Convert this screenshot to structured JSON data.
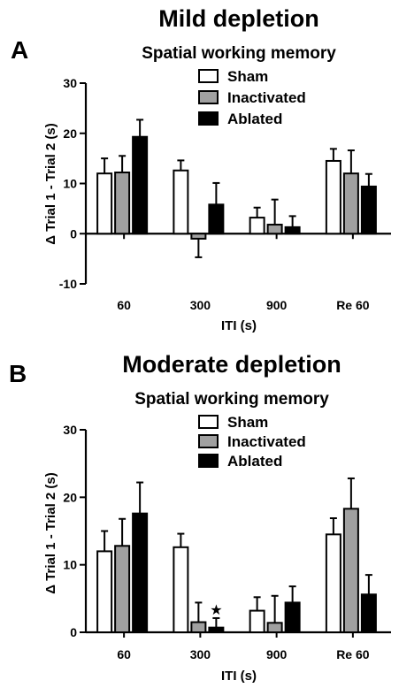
{
  "panels": [
    {
      "letter": "A",
      "heading": "Mild depletion",
      "chart_data": {
        "type": "bar",
        "title": "Spatial working memory",
        "xlabel": "ITI (s)",
        "ylabel": "Δ Trial 1 - Trial 2 (s)",
        "ylim": [
          -10,
          30
        ],
        "yticks": [
          -10,
          0,
          10,
          20,
          30
        ],
        "categories": [
          "60",
          "300",
          "900",
          "Re 60"
        ],
        "legend_position": "top-right",
        "series": [
          {
            "name": "Sham",
            "color": "#ffffff",
            "values": [
              12,
              12.6,
              3.2,
              14.5
            ],
            "errors": [
              3,
              2,
              2,
              2.4
            ]
          },
          {
            "name": "Inactivated",
            "color": "#a0a0a0",
            "values": [
              12.2,
              -1,
              1.8,
              12
            ],
            "errors": [
              3.3,
              3.7,
              5,
              4.6
            ]
          },
          {
            "name": "Ablated",
            "color": "#000000",
            "values": [
              19.3,
              5.8,
              1.3,
              9.4
            ],
            "errors": [
              3.4,
              4.3,
              2.2,
              2.5
            ]
          }
        ],
        "annotations": []
      }
    },
    {
      "letter": "B",
      "heading": "Moderate depletion",
      "chart_data": {
        "type": "bar",
        "title": "Spatial working memory",
        "xlabel": "ITI (s)",
        "ylabel": "Δ Trial 1 - Trial 2 (s)",
        "ylim": [
          0,
          30
        ],
        "yticks": [
          0,
          10,
          20,
          30
        ],
        "categories": [
          "60",
          "300",
          "900",
          "Re 60"
        ],
        "legend_position": "top-right",
        "series": [
          {
            "name": "Sham",
            "color": "#ffffff",
            "values": [
              12,
              12.6,
              3.2,
              14.5
            ],
            "errors": [
              3,
              2,
              2,
              2.4
            ]
          },
          {
            "name": "Inactivated",
            "color": "#a0a0a0",
            "values": [
              12.8,
              1.5,
              1.4,
              18.3
            ],
            "errors": [
              4,
              2.9,
              4,
              4.5
            ]
          },
          {
            "name": "Ablated",
            "color": "#000000",
            "values": [
              17.6,
              0.7,
              4.4,
              5.6
            ],
            "errors": [
              4.6,
              1.4,
              2.4,
              2.9
            ]
          }
        ],
        "annotations": [
          {
            "text": "★",
            "category": "300",
            "series": "Ablated"
          }
        ]
      }
    }
  ]
}
